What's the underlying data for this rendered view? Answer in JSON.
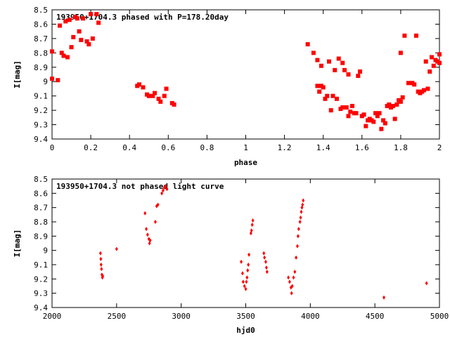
{
  "chart_data": [
    {
      "type": "scatter",
      "title": "193950+1704.3 phased with P=178.20day",
      "xlabel": "phase",
      "ylabel": "I[mag]",
      "xlim": [
        0,
        2
      ],
      "ylim": [
        9.4,
        8.5
      ],
      "y_inverted": true,
      "x_ticks": [
        "0",
        "0.2",
        "0.4",
        "0.6",
        "0.8",
        "1",
        "1.2",
        "1.4",
        "1.6",
        "1.8",
        "2"
      ],
      "y_ticks": [
        "8.5",
        "8.6",
        "8.7",
        "8.8",
        "8.9",
        "9",
        "9.1",
        "9.2",
        "9.3",
        "9.4"
      ],
      "grid": false,
      "marker_color": "#ff0000",
      "marker": "filled-square-large",
      "points": [
        [
          0.0,
          8.79
        ],
        [
          0.0,
          8.98
        ],
        [
          0.03,
          8.99
        ],
        [
          0.04,
          8.61
        ],
        [
          0.05,
          8.8
        ],
        [
          0.06,
          8.82
        ],
        [
          0.07,
          8.58
        ],
        [
          0.08,
          8.83
        ],
        [
          0.09,
          8.57
        ],
        [
          0.1,
          8.76
        ],
        [
          0.11,
          8.69
        ],
        [
          0.12,
          8.55
        ],
        [
          0.13,
          8.56
        ],
        [
          0.14,
          8.65
        ],
        [
          0.15,
          8.71
        ],
        [
          0.16,
          8.56
        ],
        [
          0.18,
          8.72
        ],
        [
          0.19,
          8.74
        ],
        [
          0.2,
          8.53
        ],
        [
          0.21,
          8.7
        ],
        [
          0.23,
          8.53
        ],
        [
          0.24,
          8.59
        ],
        [
          0.44,
          9.03
        ],
        [
          0.45,
          9.02
        ],
        [
          0.47,
          9.04
        ],
        [
          0.49,
          9.09
        ],
        [
          0.5,
          9.1
        ],
        [
          0.52,
          9.1
        ],
        [
          0.53,
          9.08
        ],
        [
          0.55,
          9.12
        ],
        [
          0.56,
          9.14
        ],
        [
          0.58,
          9.1
        ],
        [
          0.59,
          9.05
        ],
        [
          0.62,
          9.15
        ],
        [
          0.63,
          9.16
        ],
        [
          1.32,
          8.74
        ],
        [
          1.35,
          8.8
        ],
        [
          1.37,
          8.85
        ],
        [
          1.37,
          9.03
        ],
        [
          1.38,
          9.07
        ],
        [
          1.39,
          9.03
        ],
        [
          1.39,
          8.89
        ],
        [
          1.4,
          9.04
        ],
        [
          1.41,
          9.12
        ],
        [
          1.42,
          9.1
        ],
        [
          1.43,
          8.86
        ],
        [
          1.44,
          9.2
        ],
        [
          1.45,
          9.1
        ],
        [
          1.46,
          8.92
        ],
        [
          1.47,
          9.12
        ],
        [
          1.48,
          8.84
        ],
        [
          1.49,
          9.19
        ],
        [
          1.5,
          8.87
        ],
        [
          1.5,
          9.18
        ],
        [
          1.51,
          8.92
        ],
        [
          1.52,
          9.18
        ],
        [
          1.53,
          9.24
        ],
        [
          1.53,
          8.95
        ],
        [
          1.54,
          9.21
        ],
        [
          1.55,
          9.17
        ],
        [
          1.56,
          9.22
        ],
        [
          1.57,
          9.22
        ],
        [
          1.58,
          8.96
        ],
        [
          1.59,
          8.93
        ],
        [
          1.6,
          9.24
        ],
        [
          1.61,
          9.23
        ],
        [
          1.62,
          9.31
        ],
        [
          1.63,
          9.27
        ],
        [
          1.64,
          9.26
        ],
        [
          1.65,
          9.27
        ],
        [
          1.66,
          9.28
        ],
        [
          1.67,
          9.22
        ],
        [
          1.68,
          9.24
        ],
        [
          1.69,
          9.22
        ],
        [
          1.7,
          9.33
        ],
        [
          1.71,
          9.27
        ],
        [
          1.72,
          9.29
        ],
        [
          1.73,
          9.17
        ],
        [
          1.74,
          9.16
        ],
        [
          1.75,
          9.18
        ],
        [
          1.76,
          9.17
        ],
        [
          1.77,
          9.26
        ],
        [
          1.78,
          9.16
        ],
        [
          1.79,
          9.13
        ],
        [
          1.8,
          8.8
        ],
        [
          1.8,
          9.14
        ],
        [
          1.81,
          9.11
        ],
        [
          1.82,
          8.68
        ],
        [
          1.84,
          9.01
        ],
        [
          1.86,
          9.01
        ],
        [
          1.87,
          9.02
        ],
        [
          1.88,
          8.68
        ],
        [
          1.89,
          9.07
        ],
        [
          1.9,
          9.08
        ],
        [
          1.91,
          9.07
        ],
        [
          1.92,
          9.06
        ],
        [
          1.93,
          8.86
        ],
        [
          1.94,
          9.05
        ],
        [
          1.95,
          8.93
        ],
        [
          1.96,
          8.83
        ],
        [
          1.97,
          8.89
        ],
        [
          1.98,
          8.85
        ],
        [
          1.99,
          8.86
        ],
        [
          2.0,
          8.87
        ],
        [
          2.0,
          8.81
        ]
      ]
    },
    {
      "type": "scatter",
      "title": "193950+1704.3 not phased light curve",
      "xlabel": "hjd0",
      "ylabel": "I[mag]",
      "xlim": [
        2000,
        5000
      ],
      "ylim": [
        9.4,
        8.5
      ],
      "y_inverted": true,
      "x_ticks": [
        "2000",
        "2500",
        "3000",
        "3500",
        "4000",
        "4500",
        "5000"
      ],
      "y_ticks": [
        "8.5",
        "8.6",
        "8.7",
        "8.8",
        "8.9",
        "9",
        "9.1",
        "9.2",
        "9.3",
        "9.4"
      ],
      "grid": false,
      "marker_color": "#ff0000",
      "marker": "filled-diamond-small",
      "points": [
        [
          2375,
          9.02
        ],
        [
          2378,
          9.06
        ],
        [
          2380,
          9.1
        ],
        [
          2383,
          9.13
        ],
        [
          2386,
          9.17
        ],
        [
          2390,
          9.19
        ],
        [
          2393,
          9.18
        ],
        [
          2500,
          8.99
        ],
        [
          2720,
          8.74
        ],
        [
          2730,
          8.85
        ],
        [
          2740,
          8.89
        ],
        [
          2750,
          8.92
        ],
        [
          2755,
          8.95
        ],
        [
          2760,
          8.93
        ],
        [
          2800,
          8.8
        ],
        [
          2810,
          8.69
        ],
        [
          2820,
          8.68
        ],
        [
          2850,
          8.6
        ],
        [
          2860,
          8.58
        ],
        [
          2870,
          8.56
        ],
        [
          2880,
          8.55
        ],
        [
          2890,
          8.57
        ],
        [
          3465,
          9.08
        ],
        [
          3475,
          9.16
        ],
        [
          3480,
          9.22
        ],
        [
          3490,
          9.25
        ],
        [
          3500,
          9.27
        ],
        [
          3505,
          9.22
        ],
        [
          3510,
          9.19
        ],
        [
          3515,
          9.14
        ],
        [
          3520,
          9.1
        ],
        [
          3525,
          9.03
        ],
        [
          3540,
          8.88
        ],
        [
          3545,
          8.86
        ],
        [
          3550,
          8.82
        ],
        [
          3555,
          8.79
        ],
        [
          3640,
          9.02
        ],
        [
          3645,
          9.05
        ],
        [
          3655,
          9.08
        ],
        [
          3660,
          9.12
        ],
        [
          3665,
          9.15
        ],
        [
          3830,
          9.19
        ],
        [
          3840,
          9.22
        ],
        [
          3850,
          9.26
        ],
        [
          3855,
          9.3
        ],
        [
          3860,
          9.25
        ],
        [
          3870,
          9.19
        ],
        [
          3880,
          9.15
        ],
        [
          3890,
          9.05
        ],
        [
          3900,
          8.97
        ],
        [
          3905,
          8.9
        ],
        [
          3910,
          8.85
        ],
        [
          3920,
          8.8
        ],
        [
          3925,
          8.77
        ],
        [
          3930,
          8.73
        ],
        [
          3935,
          8.7
        ],
        [
          3940,
          8.68
        ],
        [
          3945,
          8.65
        ],
        [
          4570,
          9.33
        ],
        [
          4900,
          9.23
        ]
      ]
    }
  ]
}
